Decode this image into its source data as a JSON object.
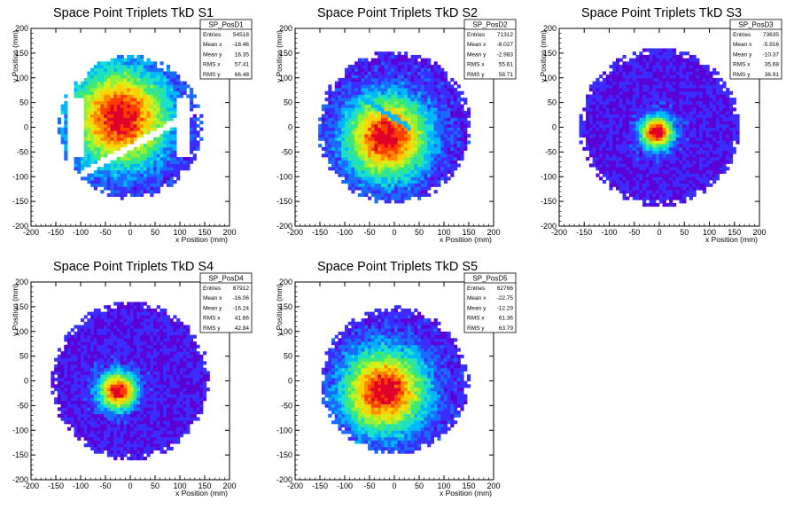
{
  "chart_data": [
    {
      "type": "heatmap",
      "title": "Space Point Triplets TkD S1",
      "xlabel": "x Position (mm)",
      "ylabel": "y Position (mm)",
      "xlim": [
        -200,
        200
      ],
      "ylim": [
        -200,
        200
      ],
      "xticks": [
        -200,
        -150,
        -100,
        -50,
        0,
        50,
        100,
        150,
        200
      ],
      "yticks": [
        -200,
        -150,
        -100,
        -50,
        0,
        50,
        100,
        150,
        200
      ],
      "stats": {
        "name": "SP_PosD1",
        "rows": [
          {
            "label": "Entries",
            "value": "54518"
          },
          {
            "label": "Mean x",
            "value": "-18.46"
          },
          {
            "label": "Mean y",
            "value": "16.35"
          },
          {
            "label": "RMS x",
            "value": "57.41"
          },
          {
            "label": "RMS y",
            "value": "66.48"
          }
        ]
      },
      "distribution": {
        "radius_mm": 145,
        "peak_x_mm": -20,
        "peak_y_mm": 20,
        "spread_mm": 65,
        "gaps": [
          {
            "x_start_mm": -100,
            "y_at_start_mm": -95,
            "slope": 0.55,
            "width_mm": 16
          },
          {
            "x_start_mm": 105,
            "y_at_start_mm": 55,
            "slope": 1.6,
            "width_mm": 14
          }
        ],
        "left_strip_x_mm": [
          -145,
          -130
        ]
      }
    },
    {
      "type": "heatmap",
      "title": "Space Point Triplets TkD S2",
      "xlabel": "x Position (mm)",
      "ylabel": "y Position (mm)",
      "xlim": [
        -200,
        200
      ],
      "ylim": [
        -200,
        200
      ],
      "xticks": [
        -200,
        -150,
        -100,
        -50,
        0,
        50,
        100,
        150,
        200
      ],
      "yticks": [
        -200,
        -150,
        -100,
        -50,
        0,
        50,
        100,
        150,
        200
      ],
      "stats": {
        "name": "SP_PosD2",
        "rows": [
          {
            "label": "Entries",
            "value": "71312"
          },
          {
            "label": "Mean x",
            "value": "-8.027"
          },
          {
            "label": "Mean y",
            "value": "-2.983"
          },
          {
            "label": "RMS x",
            "value": "55.61"
          },
          {
            "label": "RMS y",
            "value": "58.71"
          }
        ]
      },
      "distribution": {
        "radius_mm": 155,
        "peak_x_mm": -15,
        "peak_y_mm": -20,
        "spread_mm": 55,
        "band": {
          "x_start_mm": -60,
          "y_at_start_mm": 55,
          "slope": -0.6,
          "x_end_mm": 30
        }
      }
    },
    {
      "type": "heatmap",
      "title": "Space Point Triplets TkD S3",
      "xlabel": "x Position (mm)",
      "ylabel": "y Position (mm)",
      "xlim": [
        -200,
        200
      ],
      "ylim": [
        -200,
        200
      ],
      "xticks": [
        -200,
        -150,
        -100,
        -50,
        0,
        50,
        100,
        150,
        200
      ],
      "yticks": [
        -200,
        -150,
        -100,
        -50,
        0,
        50,
        100,
        150,
        200
      ],
      "stats": {
        "name": "SP_PosD3",
        "rows": [
          {
            "label": "Entries",
            "value": "73635"
          },
          {
            "label": "Mean x",
            "value": "-5.916"
          },
          {
            "label": "Mean y",
            "value": "-10.37"
          },
          {
            "label": "RMS x",
            "value": "35.68"
          },
          {
            "label": "RMS y",
            "value": "36.91"
          }
        ]
      },
      "distribution": {
        "radius_mm": 160,
        "peak_x_mm": -5,
        "peak_y_mm": -10,
        "spread_mm": 22
      }
    },
    {
      "type": "heatmap",
      "title": "Space Point Triplets TkD S4",
      "xlabel": "x Position (mm)",
      "ylabel": "y Position (mm)",
      "xlim": [
        -200,
        200
      ],
      "ylim": [
        -200,
        200
      ],
      "xticks": [
        -200,
        -150,
        -100,
        -50,
        0,
        50,
        100,
        150,
        200
      ],
      "yticks": [
        -200,
        -150,
        -100,
        -50,
        0,
        50,
        100,
        150,
        200
      ],
      "stats": {
        "name": "SP_PosD4",
        "rows": [
          {
            "label": "Entries",
            "value": "67912"
          },
          {
            "label": "Mean x",
            "value": "-16.06"
          },
          {
            "label": "Mean y",
            "value": "-16.24"
          },
          {
            "label": "RMS x",
            "value": "41.66"
          },
          {
            "label": "RMS y",
            "value": "42.84"
          }
        ]
      },
      "distribution": {
        "radius_mm": 160,
        "peak_x_mm": -25,
        "peak_y_mm": -20,
        "spread_mm": 25
      }
    },
    {
      "type": "heatmap",
      "title": "Space Point Triplets TkD S5",
      "xlabel": "x Position (mm)",
      "ylabel": "y Position (mm)",
      "xlim": [
        -200,
        200
      ],
      "ylim": [
        -200,
        200
      ],
      "xticks": [
        -200,
        -150,
        -100,
        -50,
        0,
        50,
        100,
        150,
        200
      ],
      "yticks": [
        -200,
        -150,
        -100,
        -50,
        0,
        50,
        100,
        150,
        200
      ],
      "stats": {
        "name": "SP_PosD5",
        "rows": [
          {
            "label": "Entries",
            "value": "62766"
          },
          {
            "label": "Mean x",
            "value": "-22.75"
          },
          {
            "label": "Mean y",
            "value": "-12.29"
          },
          {
            "label": "RMS x",
            "value": "61.36"
          },
          {
            "label": "RMS y",
            "value": "63.79"
          }
        ]
      },
      "distribution": {
        "radius_mm": 150,
        "peak_x_mm": -20,
        "peak_y_mm": -20,
        "spread_mm": 55
      }
    }
  ]
}
